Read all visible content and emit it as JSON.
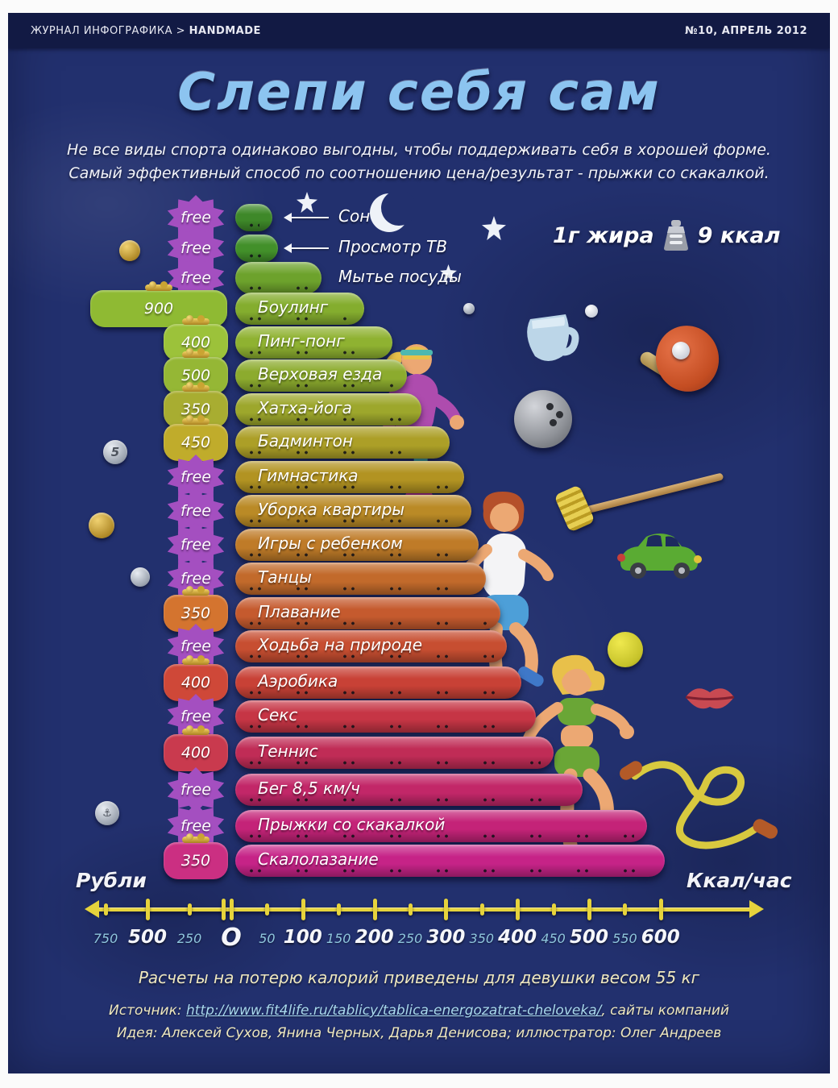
{
  "header": {
    "left_regular": "ЖУРНАЛ ИНФОГРАФИКА > ",
    "left_bold": "HANDMADE",
    "right": "№10, АПРЕЛЬ 2012"
  },
  "title": "Слепи себя сам",
  "subtitle": {
    "line1": "Не все виды спорта одинаково выгодны, чтобы поддерживать себя в хорошей форме.",
    "line2": "Самый эффективный способ по соотношению цена/результат - прыжки со скакалкой."
  },
  "fat_note": {
    "left": "1г жира",
    "right": "9 ккал",
    "icon": "weight-equals-icon"
  },
  "axis": {
    "left_cap": "Рубли",
    "right_cap": "Ккал/час",
    "ticks": [
      {
        "label": "750",
        "value": 750,
        "side": "rub",
        "major": false
      },
      {
        "label": "500",
        "value": 500,
        "side": "rub",
        "major": true
      },
      {
        "label": "250",
        "value": 250,
        "side": "rub",
        "major": false
      },
      {
        "label": "0",
        "value": 0,
        "side": "kcal",
        "major": true
      },
      {
        "label": "50",
        "value": 50,
        "side": "kcal",
        "major": false
      },
      {
        "label": "100",
        "value": 100,
        "side": "kcal",
        "major": true
      },
      {
        "label": "150",
        "value": 150,
        "side": "kcal",
        "major": false
      },
      {
        "label": "200",
        "value": 200,
        "side": "kcal",
        "major": true
      },
      {
        "label": "250",
        "value": 250,
        "side": "kcal",
        "major": false
      },
      {
        "label": "300",
        "value": 300,
        "side": "kcal",
        "major": true
      },
      {
        "label": "350",
        "value": 350,
        "side": "kcal",
        "major": false
      },
      {
        "label": "400",
        "value": 400,
        "side": "kcal",
        "major": true
      },
      {
        "label": "450",
        "value": 450,
        "side": "kcal",
        "major": false
      },
      {
        "label": "500",
        "value": 500,
        "side": "kcal",
        "major": true
      },
      {
        "label": "550",
        "value": 550,
        "side": "kcal",
        "major": false
      },
      {
        "label": "600",
        "value": 600,
        "side": "kcal",
        "major": true
      }
    ]
  },
  "chart_data": {
    "type": "bar",
    "orientation": "horizontal",
    "title": "Слепи себя сам",
    "xlabel_left": "Рубли",
    "xlabel_right": "Ккал/час",
    "xlim_kcal": [
      0,
      600
    ],
    "xlim_rub": [
      0,
      900
    ],
    "categories": [
      "Сон",
      "Просмотр ТВ",
      "Мытье посуды",
      "Боулинг",
      "Пинг-понг",
      "Верховая езда",
      "Хатха-йога",
      "Бадминтон",
      "Гимнастика",
      "Уборка квартиры",
      "Игры с ребенком",
      "Танцы",
      "Плавание",
      "Ходьба на природе",
      "Аэробика",
      "Секс",
      "Теннис",
      "Бег 8,5 км/ч",
      "Прыжки со скакалкой",
      "Скалолазание"
    ],
    "values_kcal_per_hour": [
      50,
      60,
      120,
      180,
      220,
      240,
      260,
      300,
      320,
      330,
      340,
      350,
      370,
      380,
      400,
      420,
      445,
      485,
      575,
      600
    ],
    "prices_rub": [
      "free",
      "free",
      "free",
      "900",
      "400",
      "500",
      "350",
      "450",
      "free",
      "free",
      "free",
      "free",
      "350",
      "free",
      "400",
      "free",
      "400",
      "free",
      "free",
      "350"
    ],
    "bar_colors": [
      "#3e8829",
      "#42902a",
      "#6da22c",
      "#84ad2e",
      "#8fb231",
      "#8cab2e",
      "#9da72c",
      "#ac9f27",
      "#b29322",
      "#ba8a26",
      "#bf7b28",
      "#c26a2b",
      "#c55a2e",
      "#c74e31",
      "#c84136",
      "#c63545",
      "#c02c56",
      "#c22768",
      "#c42378",
      "#c62387"
    ],
    "badge_colors": [
      "#a44fc0",
      "#a44fc0",
      "#a44fc0",
      "#8fba33",
      "#9cc23a",
      "#95b735",
      "#a8ad31",
      "#c0ac2b",
      "#a44fc0",
      "#a44fc0",
      "#a44fc0",
      "#a44fc0",
      "#d4742f",
      "#a44fc0",
      "#cf4838",
      "#a44fc0",
      "#c93a4e",
      "#a44fc0",
      "#a44fc0",
      "#cb2f82"
    ]
  },
  "footer": {
    "calc_note": "Расчеты на потерю калорий приведены для девушки весом 55 кг",
    "source_prefix": "Источник: ",
    "source_url": "http://www.fit4life.ru/tablicy/tablica-energozatrat-cheloveka/",
    "source_suffix": ", сайты компаний",
    "credits": "Идея: Алексей Сухов, Янина Черных, Дарья Денисова; иллюстратор: Олег Андреев"
  },
  "colors": {
    "accent_yellow": "#e6d33c",
    "title_blue": "#8cc4f0",
    "free_purple": "#a44fc0",
    "bg_navy": "#22306e"
  }
}
